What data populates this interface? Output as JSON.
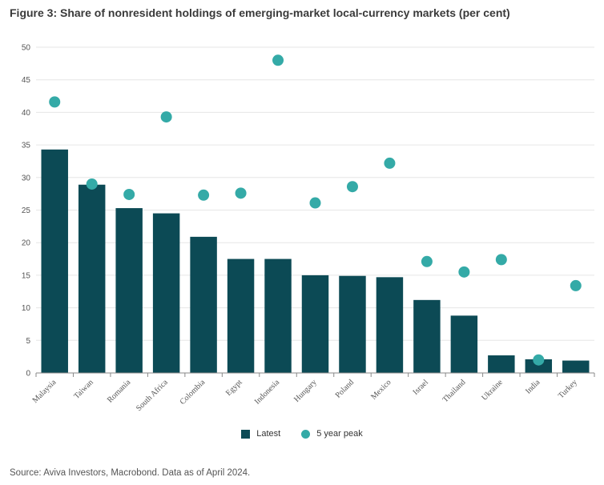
{
  "title": "Figure 3: Share of nonresident holdings of emerging-market local-currency markets (per cent)",
  "source": "Source: Aviva Investors, Macrobond. Data as of April 2024.",
  "colors": {
    "bar": "#0c4a55",
    "dot": "#34aaa7",
    "grid": "#e6e6e6",
    "axis": "#888888"
  },
  "legend": {
    "latest": "Latest",
    "peak": "5 year peak"
  },
  "chart_data": {
    "type": "bar",
    "title": "Figure 3: Share of nonresident holdings of emerging-market local-currency markets (per cent)",
    "xlabel": "",
    "ylabel": "",
    "ylim": [
      0,
      50
    ],
    "yticks": [
      0,
      5,
      10,
      15,
      20,
      25,
      30,
      35,
      40,
      45,
      50
    ],
    "grid": true,
    "legend_position": "bottom-center",
    "categories": [
      "Malaysia",
      "Taiwan",
      "Romania",
      "South Africa",
      "Colombia",
      "Egypt",
      "Indonesia",
      "Hungary",
      "Poland",
      "Mexico",
      "Israel",
      "Thailand",
      "Ukraine",
      "India",
      "Turkey"
    ],
    "series": [
      {
        "name": "Latest",
        "type": "bar",
        "values": [
          34.3,
          28.9,
          25.3,
          24.5,
          20.9,
          17.5,
          17.5,
          15.0,
          14.9,
          14.7,
          11.2,
          8.8,
          2.7,
          2.1,
          1.9
        ]
      },
      {
        "name": "5 year peak",
        "type": "scatter",
        "values": [
          41.6,
          29.0,
          27.4,
          39.3,
          27.3,
          27.6,
          48.0,
          26.1,
          28.6,
          32.2,
          17.1,
          15.5,
          17.4,
          2.0,
          13.4
        ]
      }
    ]
  }
}
